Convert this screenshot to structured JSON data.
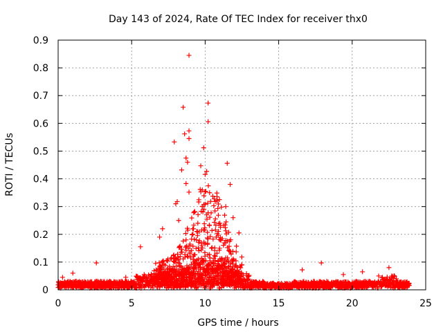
{
  "chart_data": {
    "type": "scatter",
    "title": "Day 143 of 2024, Rate Of TEC Index for receiver thx0",
    "xlabel": "GPS time / hours",
    "ylabel": "ROTI / TECUs",
    "xlim": [
      0,
      25
    ],
    "ylim": [
      0,
      0.9
    ],
    "x_ticks": [
      "0",
      "5",
      "10",
      "15",
      "20",
      "25"
    ],
    "y_ticks": [
      "0",
      "0.1",
      "0.2",
      "0.3",
      "0.4",
      "0.5",
      "0.6",
      "0.7",
      "0.8",
      "0.9"
    ],
    "grid": true,
    "marker": "plus",
    "color": "#ff0000",
    "series": [
      {
        "x": [
          8.9,
          8.5,
          10.2,
          10.2,
          7.9,
          8.9,
          8.9,
          8.6,
          8.7,
          8.8,
          9.7,
          10.1,
          9.9,
          11.5,
          10.8,
          8.4,
          8.1,
          10.0,
          8.7,
          8.0,
          8.9,
          9.5,
          10.3,
          11.7,
          11.4,
          17.9,
          2.6,
          1.0,
          5.6,
          7.1,
          12.3,
          16.6,
          22.5,
          20.7,
          19.4,
          6.9,
          8.3,
          8.2,
          9.2,
          9.8,
          10.1,
          9.4,
          11.0,
          11.9,
          12.5,
          0.3,
          21.8,
          23.0,
          14.0,
          3.8,
          4.6
        ],
        "y": [
          0.845,
          0.658,
          0.673,
          0.606,
          0.533,
          0.573,
          0.545,
          0.562,
          0.475,
          0.46,
          0.447,
          0.427,
          0.512,
          0.456,
          0.322,
          0.432,
          0.318,
          0.416,
          0.383,
          0.31,
          0.352,
          0.24,
          0.35,
          0.38,
          0.3,
          0.097,
          0.097,
          0.06,
          0.155,
          0.22,
          0.205,
          0.072,
          0.08,
          0.065,
          0.055,
          0.19,
          0.12,
          0.25,
          0.22,
          0.3,
          0.27,
          0.18,
          0.24,
          0.26,
          0.09,
          0.045,
          0.05,
          0.04,
          0.025,
          0.03,
          0.045
        ]
      }
    ]
  }
}
